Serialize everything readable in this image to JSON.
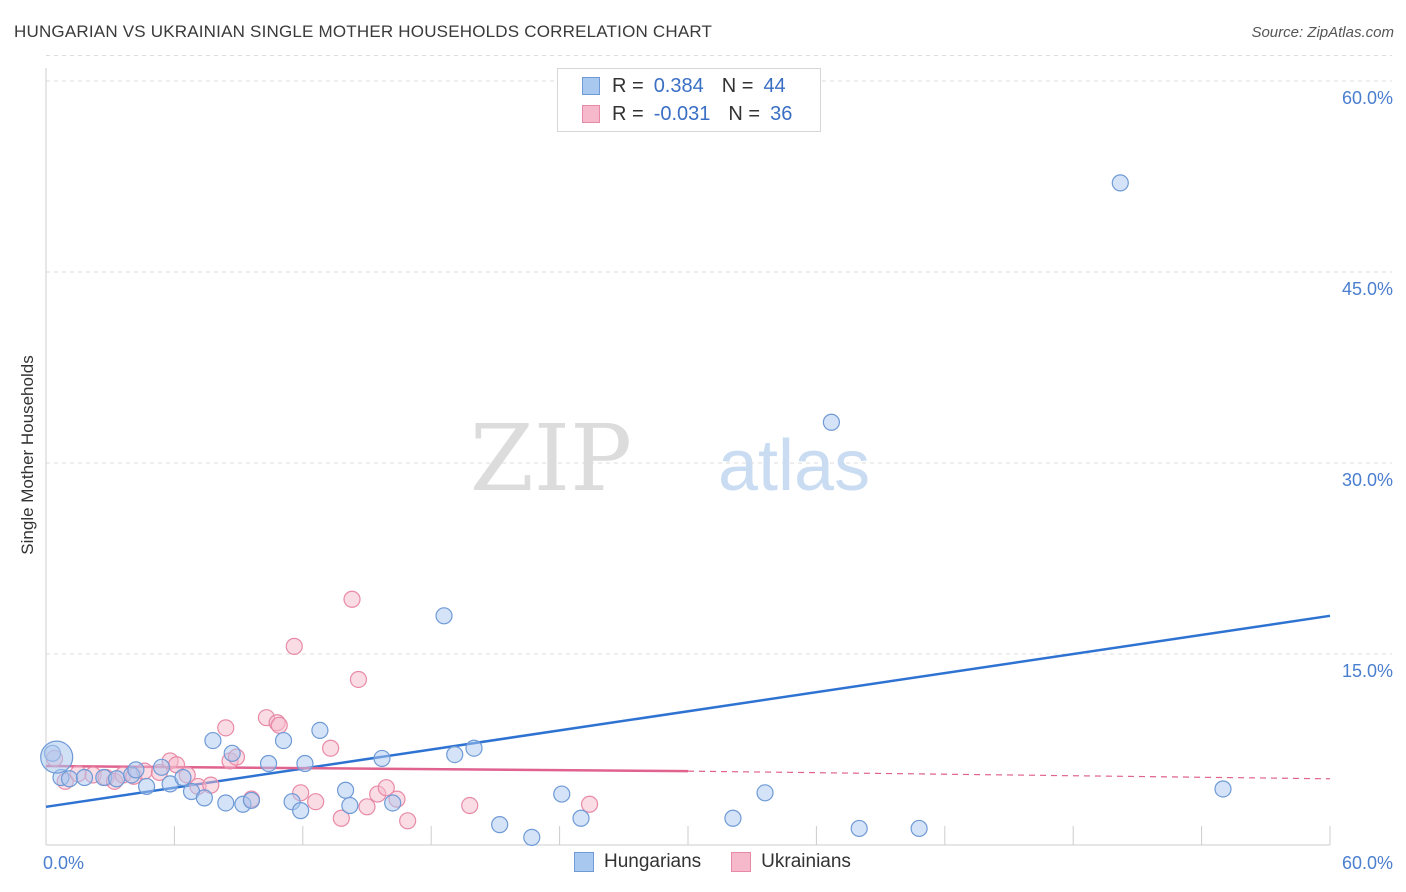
{
  "title": "HUNGARIAN VS UKRAINIAN SINGLE MOTHER HOUSEHOLDS CORRELATION CHART",
  "source": "Source: ZipAtlas.com",
  "watermark": {
    "part1": "ZIP",
    "part2": "atlas"
  },
  "legend": {
    "rows": [
      {
        "r_label": "R =",
        "r_value": "0.384",
        "n_label": "N =",
        "n_value": "44"
      },
      {
        "r_label": "R =",
        "r_value": "-0.031",
        "n_label": "N =",
        "n_value": "36"
      }
    ]
  },
  "bottom_legend": [
    "Hungarians",
    "Ukrainians"
  ],
  "colors": {
    "hungarian_fill": "#a9c8ef",
    "hungarian_stroke": "#6f9ad6",
    "hungarian_line": "#2e72d2",
    "ukrainian_fill": "#f6b9cb",
    "ukrainian_stroke": "#e88aa7",
    "ukrainian_line": "#e0628f",
    "tick_text": "#4a7ecf",
    "grid": "#dddddd"
  },
  "chart_data": {
    "type": "scatter",
    "title": "HUNGARIAN VS UKRAINIAN SINGLE MOTHER HOUSEHOLDS CORRELATION CHART",
    "xlabel": "",
    "ylabel": "Single Mother Households",
    "xlim": [
      0,
      60
    ],
    "ylim": [
      0,
      62
    ],
    "x_tick_labels": [
      "0.0%",
      "60.0%"
    ],
    "y_ticks": [
      15,
      30,
      45,
      60
    ],
    "y_tick_labels": [
      "15.0%",
      "30.0%",
      "45.0%",
      "60.0%"
    ],
    "series": [
      {
        "name": "Hungarians",
        "r": 0.384,
        "n": 44,
        "trend": {
          "x": [
            0,
            60
          ],
          "y": [
            3.0,
            18.0
          ]
        },
        "points": [
          [
            0.3,
            7.2
          ],
          [
            0.7,
            5.3
          ],
          [
            1.1,
            5.2
          ],
          [
            1.8,
            5.3
          ],
          [
            2.7,
            5.3
          ],
          [
            3.3,
            5.2
          ],
          [
            4.0,
            5.5
          ],
          [
            4.2,
            5.9
          ],
          [
            4.7,
            4.6
          ],
          [
            5.4,
            6.1
          ],
          [
            5.8,
            4.8
          ],
          [
            6.4,
            5.3
          ],
          [
            6.8,
            4.2
          ],
          [
            7.4,
            3.7
          ],
          [
            7.8,
            8.2
          ],
          [
            8.4,
            3.3
          ],
          [
            8.7,
            7.2
          ],
          [
            9.2,
            3.2
          ],
          [
            9.6,
            3.5
          ],
          [
            10.4,
            6.4
          ],
          [
            11.1,
            8.2
          ],
          [
            11.5,
            3.4
          ],
          [
            11.9,
            2.7
          ],
          [
            12.1,
            6.4
          ],
          [
            12.8,
            9.0
          ],
          [
            14.0,
            4.3
          ],
          [
            14.2,
            3.1
          ],
          [
            15.7,
            6.8
          ],
          [
            16.2,
            3.3
          ],
          [
            18.6,
            18.0
          ],
          [
            19.1,
            7.1
          ],
          [
            20.0,
            7.6
          ],
          [
            21.2,
            1.6
          ],
          [
            22.7,
            0.6
          ],
          [
            24.1,
            4.0
          ],
          [
            25.0,
            2.1
          ],
          [
            32.1,
            2.1
          ],
          [
            33.6,
            4.1
          ],
          [
            36.7,
            33.2
          ],
          [
            38.0,
            1.3
          ],
          [
            40.8,
            1.3
          ],
          [
            50.2,
            52.0
          ],
          [
            55.0,
            4.4
          ],
          [
            0.5,
            6.9
          ]
        ]
      },
      {
        "name": "Ukrainians",
        "r": -0.031,
        "n": 36,
        "trend": {
          "x": [
            0,
            30
          ],
          "y": [
            6.2,
            5.8
          ]
        },
        "trend_dashed": {
          "x": [
            30,
            60
          ],
          "y": [
            5.8,
            5.2
          ]
        },
        "points": [
          [
            0.4,
            6.8
          ],
          [
            0.9,
            5.0
          ],
          [
            1.5,
            5.6
          ],
          [
            2.2,
            5.5
          ],
          [
            2.8,
            5.3
          ],
          [
            3.2,
            5.0
          ],
          [
            3.6,
            5.5
          ],
          [
            4.1,
            5.4
          ],
          [
            4.6,
            5.8
          ],
          [
            5.3,
            5.7
          ],
          [
            5.8,
            6.6
          ],
          [
            6.1,
            6.3
          ],
          [
            6.6,
            5.5
          ],
          [
            7.1,
            4.6
          ],
          [
            7.7,
            4.7
          ],
          [
            8.4,
            9.2
          ],
          [
            8.6,
            6.6
          ],
          [
            8.9,
            6.9
          ],
          [
            9.6,
            3.6
          ],
          [
            10.3,
            10.0
          ],
          [
            10.8,
            9.6
          ],
          [
            11.6,
            15.6
          ],
          [
            11.9,
            4.1
          ],
          [
            12.6,
            3.4
          ],
          [
            13.3,
            7.6
          ],
          [
            13.8,
            2.1
          ],
          [
            14.3,
            19.3
          ],
          [
            14.6,
            13.0
          ],
          [
            15.0,
            3.0
          ],
          [
            15.5,
            4.0
          ],
          [
            15.9,
            4.5
          ],
          [
            16.4,
            3.6
          ],
          [
            16.9,
            1.9
          ],
          [
            19.8,
            3.1
          ],
          [
            25.4,
            3.2
          ],
          [
            10.9,
            9.4
          ]
        ]
      }
    ]
  }
}
